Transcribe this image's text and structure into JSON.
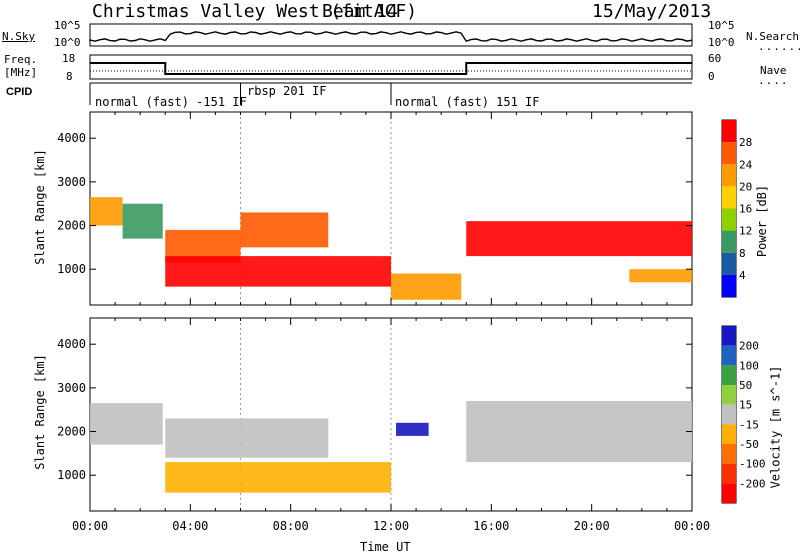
{
  "header": {
    "station": "Christmas Valley West (fitACF)",
    "beam": "Beam 14",
    "date": "15/May/2013"
  },
  "top_panels": {
    "nsky_label": "N.Sky",
    "nsky_ticks": [
      "10^5",
      "10^0"
    ],
    "nsearch_label": "N.Search",
    "nsearch_ticks": [
      "10^5",
      "10^0"
    ],
    "freq_label": "Freq.",
    "freq_unit": "[MHz]",
    "freq_ticks": [
      "18",
      "8"
    ],
    "nave_label": "Nave",
    "nave_ticks": [
      "60",
      "0"
    ],
    "cpid_label": "CPID",
    "cpid_segments": [
      {
        "name": "normal (fast) -151 IF",
        "start": 0,
        "end": 6
      },
      {
        "name": "rbsp 201 IF",
        "start": 6,
        "end": 12
      },
      {
        "name": "normal (fast) 151 IF",
        "start": 12,
        "end": 24
      }
    ]
  },
  "x_axis": {
    "label": "Time UT",
    "ticks": [
      "00:00",
      "04:00",
      "08:00",
      "12:00",
      "16:00",
      "20:00",
      "00:00"
    ]
  },
  "chart_data": [
    {
      "type": "heatmap",
      "title": "",
      "xlabel": "",
      "ylabel": "Slant Range [km]",
      "xlim": [
        0,
        24
      ],
      "ylim": [
        180,
        4600
      ],
      "yticks": [
        1000,
        2000,
        3000,
        4000
      ],
      "colorbar": {
        "label": "Power [dB]",
        "ticks": [
          "28",
          "24",
          "20",
          "16",
          "12",
          "8",
          "4"
        ],
        "colors": [
          "#ff0000",
          "#ff5a00",
          "#ff9a00",
          "#ffd000",
          "#8fd000",
          "#3a9a60",
          "#1a5aa0",
          "#0000ff"
        ]
      },
      "features": [
        {
          "t0": 0.0,
          "t1": 1.3,
          "r0": 2000,
          "r1": 2650,
          "dB": 22
        },
        {
          "t0": 1.3,
          "t1": 2.9,
          "r0": 1700,
          "r1": 2500,
          "dB": 8
        },
        {
          "t0": 3.0,
          "t1": 6.0,
          "r0": 1150,
          "r1": 1900,
          "dB": 26
        },
        {
          "t0": 6.0,
          "t1": 9.5,
          "r0": 1500,
          "r1": 2300,
          "dB": 24
        },
        {
          "t0": 3.0,
          "t1": 12.0,
          "r0": 600,
          "r1": 1300,
          "dB": 28
        },
        {
          "t0": 12.0,
          "t1": 14.8,
          "r0": 300,
          "r1": 900,
          "dB": 20
        },
        {
          "t0": 15.0,
          "t1": 24.0,
          "r0": 1300,
          "r1": 2100,
          "dB": 28
        },
        {
          "t0": 21.5,
          "t1": 24.0,
          "r0": 700,
          "r1": 1000,
          "dB": 20
        }
      ]
    },
    {
      "type": "heatmap",
      "title": "",
      "xlabel": "Time UT",
      "ylabel": "Slant Range [km]",
      "xlim": [
        0,
        24
      ],
      "ylim": [
        180,
        4600
      ],
      "yticks": [
        1000,
        2000,
        3000,
        4000
      ],
      "colorbar": {
        "label": "Velocity [m s^-1]",
        "ticks": [
          "200",
          "100",
          "50",
          "15",
          "-15",
          "-50",
          "-100",
          "-200"
        ],
        "colors": [
          "#1818c0",
          "#2060c0",
          "#3aa040",
          "#90d040",
          "#c0c0c0",
          "#ffb000",
          "#ff7000",
          "#ff3000",
          "#ff0000"
        ]
      },
      "features": [
        {
          "t0": 0.0,
          "t1": 2.9,
          "r0": 1700,
          "r1": 2650,
          "v": 0
        },
        {
          "t0": 3.0,
          "t1": 9.5,
          "r0": 1400,
          "r1": 2300,
          "v": 0
        },
        {
          "t0": 3.0,
          "t1": 12.0,
          "r0": 600,
          "r1": 1300,
          "v": -40
        },
        {
          "t0": 12.2,
          "t1": 13.5,
          "r0": 1900,
          "r1": 2200,
          "v": 200
        },
        {
          "t0": 15.0,
          "t1": 24.0,
          "r0": 1300,
          "r1": 2700,
          "v": 0
        }
      ]
    }
  ]
}
